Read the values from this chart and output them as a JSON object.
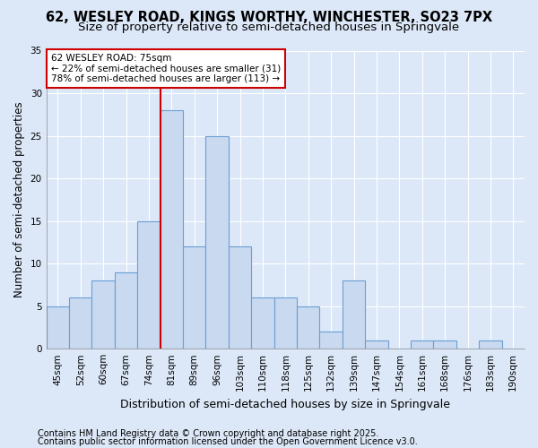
{
  "title_line1": "62, WESLEY ROAD, KINGS WORTHY, WINCHESTER, SO23 7PX",
  "title_line2": "Size of property relative to semi-detached houses in Springvale",
  "xlabel": "Distribution of semi-detached houses by size in Springvale",
  "ylabel": "Number of semi-detached properties",
  "categories": [
    "45sqm",
    "52sqm",
    "60sqm",
    "67sqm",
    "74sqm",
    "81sqm",
    "89sqm",
    "96sqm",
    "103sqm",
    "110sqm",
    "118sqm",
    "125sqm",
    "132sqm",
    "139sqm",
    "147sqm",
    "154sqm",
    "161sqm",
    "168sqm",
    "176sqm",
    "183sqm",
    "190sqm"
  ],
  "values": [
    5,
    6,
    8,
    9,
    15,
    28,
    12,
    25,
    12,
    6,
    6,
    5,
    2,
    8,
    1,
    0,
    1,
    1,
    0,
    1,
    0
  ],
  "bar_color": "#c9d9f0",
  "bar_edge_color": "#6b9fd4",
  "vline_color": "#cc0000",
  "annotation_title": "62 WESLEY ROAD: 75sqm",
  "annotation_line1": "← 22% of semi-detached houses are smaller (31)",
  "annotation_line2": "78% of semi-detached houses are larger (113) →",
  "annotation_box_color": "#cc0000",
  "footnote_line1": "Contains HM Land Registry data © Crown copyright and database right 2025.",
  "footnote_line2": "Contains public sector information licensed under the Open Government Licence v3.0.",
  "ylim": [
    0,
    35
  ],
  "yticks": [
    0,
    5,
    10,
    15,
    20,
    25,
    30,
    35
  ],
  "background_color": "#dce8f8",
  "grid_color": "#ffffff",
  "title_fontsize": 10.5,
  "subtitle_fontsize": 9.5,
  "ylabel_fontsize": 8.5,
  "xlabel_fontsize": 9,
  "tick_fontsize": 7.5,
  "annot_fontsize": 7.5,
  "footnote_fontsize": 7
}
